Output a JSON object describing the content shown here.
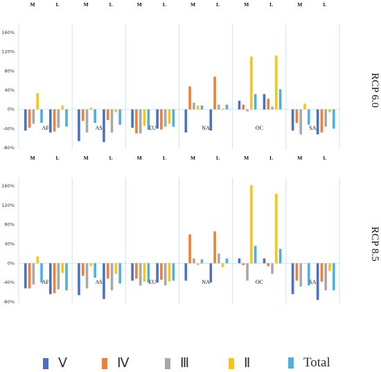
{
  "chart_data": {
    "type": "bar",
    "series_names": [
      "Ⅴ",
      "Ⅳ",
      "Ⅲ",
      "Ⅱ",
      "Total"
    ],
    "colors": [
      "#4a72c0",
      "#f07f35",
      "#a8a8a8",
      "#f5c518",
      "#4db0de"
    ],
    "regions": [
      "AF",
      "AS",
      "EU",
      "NA",
      "OC",
      "SA"
    ],
    "periods": [
      "M",
      "L"
    ],
    "y_ticks": [
      "-80%",
      "-40%",
      "0%",
      "40%",
      "80%",
      "120%",
      "160%"
    ],
    "ylim": [
      -80,
      160
    ],
    "panels": [
      {
        "label": "RCP 6.0",
        "values": {
          "AF": {
            "M": [
              -44,
              -38,
              -30,
              34,
              -28
            ],
            "L": [
              -48,
              -46,
              -38,
              8,
              -36
            ]
          },
          "AS": {
            "M": [
              -66,
              -24,
              -48,
              4,
              -28
            ],
            "L": [
              -68,
              -22,
              -48,
              -6,
              -32
            ]
          },
          "EU": {
            "M": [
              -38,
              -50,
              -50,
              -34,
              -42
            ],
            "L": [
              -40,
              -42,
              -36,
              -30,
              -36
            ]
          },
          "NA": {
            "M": [
              -48,
              48,
              14,
              8,
              8
            ],
            "L": [
              -44,
              68,
              10,
              2,
              10
            ]
          },
          "OC": {
            "M": [
              18,
              10,
              -4,
              110,
              32
            ],
            "L": [
              32,
              22,
              6,
              112,
              42
            ]
          },
          "SA": {
            "M": [
              -44,
              -28,
              -52,
              12,
              -32
            ],
            "L": [
              -52,
              -48,
              -36,
              -6,
              -40
            ]
          }
        }
      },
      {
        "label": "RCP 8.5",
        "values": {
          "AF": {
            "M": [
              -52,
              -52,
              -44,
              14,
              -40
            ],
            "L": [
              -64,
              -62,
              -54,
              -20,
              -56
            ]
          },
          "AS": {
            "M": [
              -66,
              -26,
              -52,
              -6,
              -30
            ],
            "L": [
              -74,
              -32,
              -56,
              -22,
              -42
            ]
          },
          "EU": {
            "M": [
              -36,
              -32,
              -46,
              -38,
              -40
            ],
            "L": [
              -40,
              -34,
              -46,
              -38,
              -36
            ]
          },
          "NA": {
            "M": [
              -36,
              60,
              10,
              -4,
              8
            ],
            "L": [
              -40,
              66,
              20,
              -8,
              10
            ]
          },
          "OC": {
            "M": [
              10,
              -4,
              -36,
              162,
              36
            ],
            "L": [
              10,
              -6,
              -22,
              144,
              30
            ]
          },
          "SA": {
            "M": [
              -64,
              -36,
              -48,
              0,
              -46
            ],
            "L": [
              -76,
              -38,
              -56,
              -16,
              -56
            ]
          }
        }
      }
    ]
  }
}
